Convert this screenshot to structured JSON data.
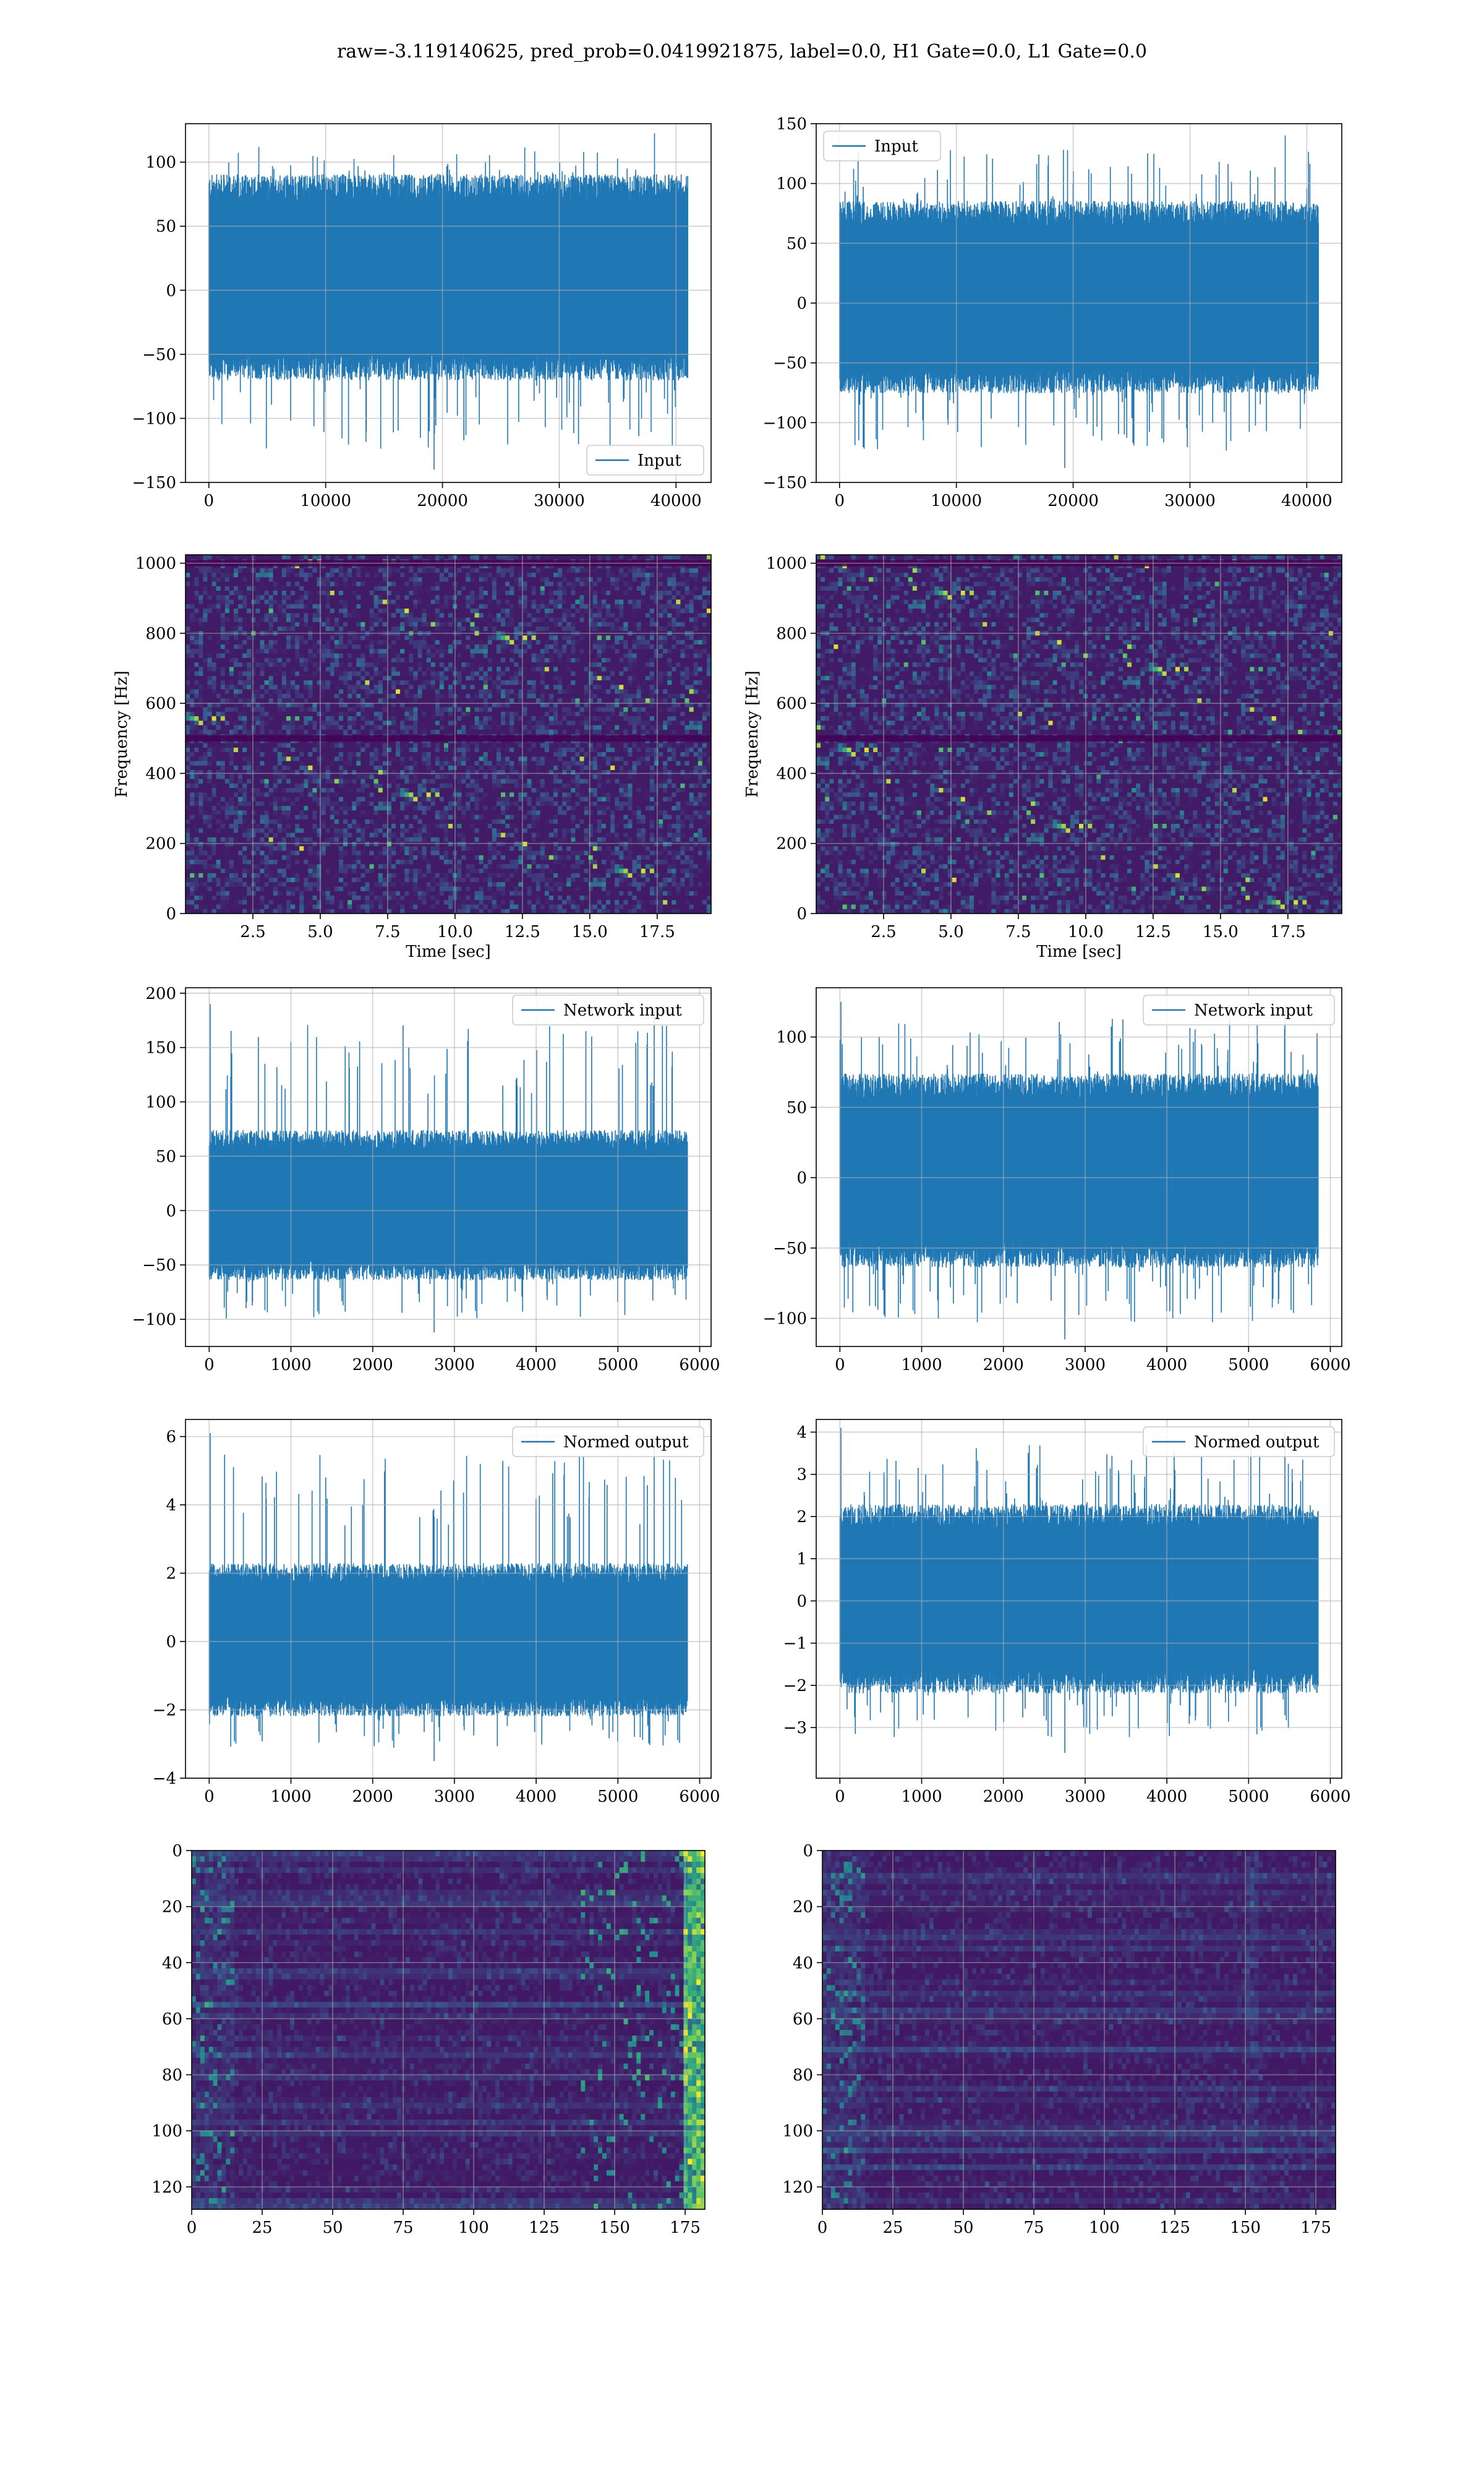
{
  "title": "raw=-3.119140625, pred_prob=0.0419921875, label=0.0, H1 Gate=0.0, L1 Gate=0.0",
  "colors": {
    "line": "#1f77b4",
    "grid": "#b0b0b0",
    "viridis_dark": "#440154",
    "viridis_mid": "#21918c",
    "viridis_bright": "#fde725"
  },
  "chart_data": [
    {
      "id": "h1-input",
      "type": "line",
      "x": [
        0,
        41000
      ],
      "ylim": [
        -150,
        130
      ],
      "xlim": [
        -2000,
        43000
      ],
      "xticks": [
        0,
        10000,
        20000,
        30000,
        40000
      ],
      "yticks": [
        -150,
        -100,
        -50,
        0,
        50,
        100
      ],
      "xtick_labels": [
        "0",
        "10000",
        "20000",
        "30000",
        "40000"
      ],
      "ytick_labels": [
        "−150",
        "−100",
        "−50",
        "0",
        "50",
        "100"
      ],
      "series": [
        {
          "name": "Input",
          "envelope": {
            "band": [
              -60,
              80
            ],
            "peaks_max": 125,
            "peaks_min": -140
          }
        }
      ],
      "legend": "lower right",
      "grid": true,
      "xlabel": "",
      "ylabel": ""
    },
    {
      "id": "l1-input",
      "type": "line",
      "x": [
        0,
        41000
      ],
      "ylim": [
        -150,
        150
      ],
      "xlim": [
        -2000,
        43000
      ],
      "xticks": [
        0,
        10000,
        20000,
        30000,
        40000
      ],
      "yticks": [
        -150,
        -100,
        -50,
        0,
        50,
        100,
        150
      ],
      "xtick_labels": [
        "0",
        "10000",
        "20000",
        "30000",
        "40000"
      ],
      "ytick_labels": [
        "−150",
        "−100",
        "−50",
        "0",
        "50",
        "100",
        "150"
      ],
      "series": [
        {
          "name": "Input",
          "envelope": {
            "band": [
              -65,
              75
            ],
            "peaks_max": 143,
            "peaks_min": -138
          }
        }
      ],
      "legend": "upper left",
      "grid": true,
      "xlabel": "",
      "ylabel": ""
    },
    {
      "id": "h1-spectrogram",
      "type": "heatmap",
      "xlim": [
        0,
        19.5
      ],
      "ylim": [
        0,
        1024
      ],
      "xticks": [
        2.5,
        5.0,
        7.5,
        10.0,
        12.5,
        15.0,
        17.5
      ],
      "yticks": [
        0,
        200,
        400,
        600,
        800,
        1000
      ],
      "xtick_labels": [
        "2.5",
        "5.0",
        "7.5",
        "10.0",
        "12.5",
        "15.0",
        "17.5"
      ],
      "ytick_labels": [
        "0",
        "200",
        "400",
        "600",
        "800",
        "1000"
      ],
      "xlabel": "Time [sec]",
      "ylabel": "Frequency [Hz]",
      "grid": true,
      "colormap": "viridis",
      "dark_lines_hz": [
        500,
        1000
      ]
    },
    {
      "id": "l1-spectrogram",
      "type": "heatmap",
      "xlim": [
        0,
        19.5
      ],
      "ylim": [
        0,
        1024
      ],
      "xticks": [
        2.5,
        5.0,
        7.5,
        10.0,
        12.5,
        15.0,
        17.5
      ],
      "yticks": [
        0,
        200,
        400,
        600,
        800,
        1000
      ],
      "xtick_labels": [
        "2.5",
        "5.0",
        "7.5",
        "10.0",
        "12.5",
        "15.0",
        "17.5"
      ],
      "ytick_labels": [
        "0",
        "200",
        "400",
        "600",
        "800",
        "1000"
      ],
      "xlabel": "Time [sec]",
      "ylabel": "Frequency [Hz]",
      "grid": true,
      "colormap": "viridis",
      "dark_lines_hz": [
        500,
        1000
      ]
    },
    {
      "id": "h1-network-input",
      "type": "line",
      "x": [
        0,
        5850
      ],
      "ylim": [
        -125,
        205
      ],
      "xlim": [
        -290,
        6140
      ],
      "xticks": [
        0,
        1000,
        2000,
        3000,
        4000,
        5000,
        6000
      ],
      "yticks": [
        -100,
        -50,
        0,
        50,
        100,
        150,
        200
      ],
      "xtick_labels": [
        "0",
        "1000",
        "2000",
        "3000",
        "4000",
        "5000",
        "6000"
      ],
      "ytick_labels": [
        "−100",
        "−50",
        "0",
        "50",
        "100",
        "150",
        "200"
      ],
      "series": [
        {
          "name": "Network input",
          "envelope": {
            "band": [
              -55,
              65
            ],
            "peaks_max": 190,
            "peaks_min": -112
          }
        }
      ],
      "legend": "upper right",
      "grid": true,
      "xlabel": "",
      "ylabel": ""
    },
    {
      "id": "l1-network-input",
      "type": "line",
      "x": [
        0,
        5850
      ],
      "ylim": [
        -120,
        135
      ],
      "xlim": [
        -290,
        6140
      ],
      "xticks": [
        0,
        1000,
        2000,
        3000,
        4000,
        5000,
        6000
      ],
      "yticks": [
        -100,
        -50,
        0,
        50,
        100
      ],
      "xtick_labels": [
        "0",
        "1000",
        "2000",
        "3000",
        "4000",
        "5000",
        "6000"
      ],
      "ytick_labels": [
        "−100",
        "−50",
        "0",
        "50",
        "100"
      ],
      "series": [
        {
          "name": "Network input",
          "envelope": {
            "band": [
              -55,
              65
            ],
            "peaks_max": 125,
            "peaks_min": -115
          }
        }
      ],
      "legend": "upper right",
      "grid": true,
      "xlabel": "",
      "ylabel": ""
    },
    {
      "id": "h1-normed-output",
      "type": "line",
      "x": [
        0,
        5850
      ],
      "ylim": [
        -4,
        6.5
      ],
      "xlim": [
        -290,
        6140
      ],
      "xticks": [
        0,
        1000,
        2000,
        3000,
        4000,
        5000,
        6000
      ],
      "yticks": [
        -4,
        -2,
        0,
        2,
        4,
        6
      ],
      "xtick_labels": [
        "0",
        "1000",
        "2000",
        "3000",
        "4000",
        "5000",
        "6000"
      ],
      "ytick_labels": [
        "−4",
        "−2",
        "0",
        "2",
        "4",
        "6"
      ],
      "series": [
        {
          "name": "Normed output",
          "envelope": {
            "band": [
              -1.9,
              2.0
            ],
            "peaks_max": 6.1,
            "peaks_min": -3.5
          }
        }
      ],
      "legend": "upper right",
      "grid": true,
      "xlabel": "",
      "ylabel": ""
    },
    {
      "id": "l1-normed-output",
      "type": "line",
      "x": [
        0,
        5850
      ],
      "ylim": [
        -4.2,
        4.3
      ],
      "xlim": [
        -290,
        6140
      ],
      "xticks": [
        0,
        1000,
        2000,
        3000,
        4000,
        5000,
        6000
      ],
      "yticks": [
        -3,
        -2,
        -1,
        0,
        1,
        2,
        3,
        4
      ],
      "xtick_labels": [
        "0",
        "1000",
        "2000",
        "3000",
        "4000",
        "5000",
        "6000"
      ],
      "ytick_labels": [
        "−3",
        "−2",
        "−1",
        "0",
        "1",
        "2",
        "3",
        "4"
      ],
      "series": [
        {
          "name": "Normed output",
          "envelope": {
            "band": [
              -1.9,
              2.0
            ],
            "peaks_max": 4.1,
            "peaks_min": -3.6
          }
        }
      ],
      "legend": "upper right",
      "grid": true,
      "xlabel": "",
      "ylabel": ""
    },
    {
      "id": "h1-feature-map",
      "type": "heatmap",
      "xlim": [
        0,
        182
      ],
      "ylim": [
        128,
        0
      ],
      "xticks": [
        0,
        25,
        50,
        75,
        100,
        125,
        150,
        175
      ],
      "yticks": [
        0,
        20,
        40,
        60,
        80,
        100,
        120
      ],
      "xtick_labels": [
        "0",
        "25",
        "50",
        "75",
        "100",
        "125",
        "150",
        "175"
      ],
      "ytick_labels": [
        "0",
        "20",
        "40",
        "60",
        "80",
        "100",
        "120"
      ],
      "xlabel": "",
      "ylabel": "",
      "grid": true,
      "colormap": "viridis",
      "bright_columns_at_end": true
    },
    {
      "id": "l1-feature-map",
      "type": "heatmap",
      "xlim": [
        0,
        182
      ],
      "ylim": [
        128,
        0
      ],
      "xticks": [
        0,
        25,
        50,
        75,
        100,
        125,
        150,
        175
      ],
      "yticks": [
        0,
        20,
        40,
        60,
        80,
        100,
        120
      ],
      "xtick_labels": [
        "0",
        "25",
        "50",
        "75",
        "100",
        "125",
        "150",
        "175"
      ],
      "ytick_labels": [
        "0",
        "20",
        "40",
        "60",
        "80",
        "100",
        "120"
      ],
      "xlabel": "",
      "ylabel": "",
      "grid": true,
      "colormap": "viridis",
      "bright_columns_at_end": false
    }
  ]
}
